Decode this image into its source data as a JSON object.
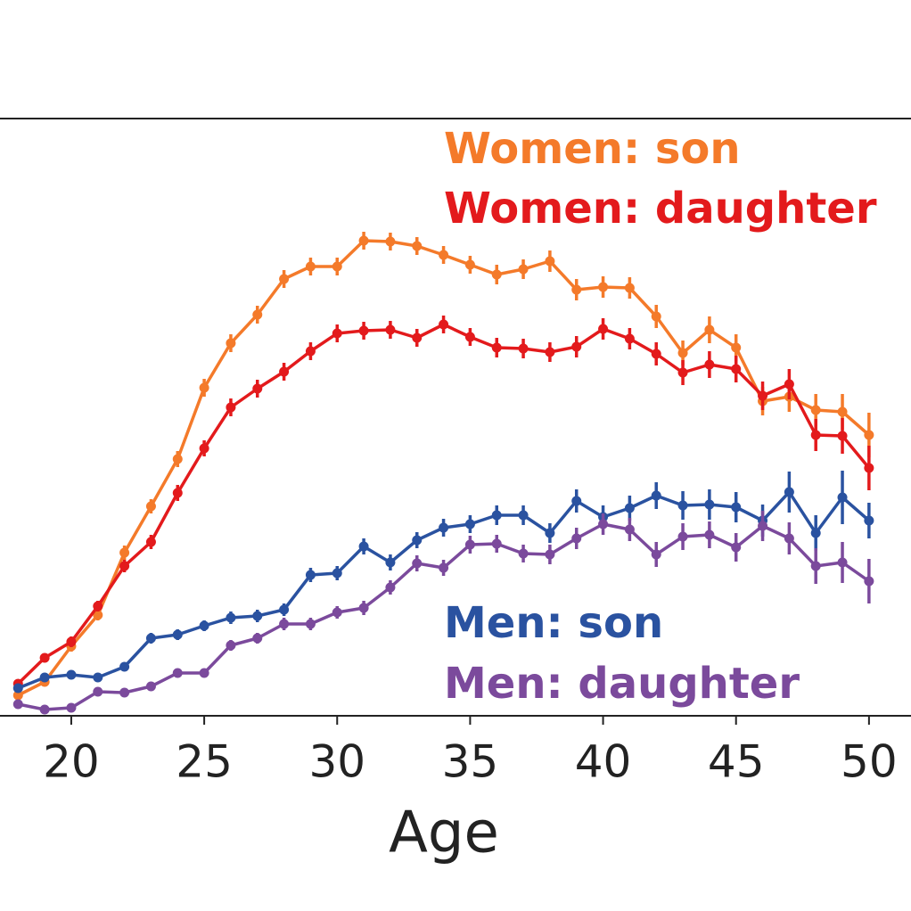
{
  "chart_data": {
    "type": "line",
    "x_label": "Age",
    "x": [
      18,
      19,
      20,
      21,
      22,
      23,
      24,
      25,
      26,
      27,
      28,
      29,
      30,
      31,
      32,
      33,
      34,
      35,
      36,
      37,
      38,
      39,
      40,
      41,
      42,
      43,
      44,
      45,
      46,
      47,
      48,
      49,
      50
    ],
    "xlim": [
      17.32,
      51.58
    ],
    "xticks": [
      20,
      25,
      30,
      35,
      40,
      45,
      50
    ],
    "ylim": [
      0,
      67
    ],
    "series": [
      {
        "name": "Women: son",
        "color": "#f47a2a",
        "values": [
          2.3,
          3.8,
          7.8,
          11.3,
          18.3,
          23.5,
          28.8,
          36.8,
          41.8,
          45,
          49,
          50.4,
          50.4,
          53.3,
          53.2,
          52.7,
          51.7,
          50.6,
          49.5,
          50.1,
          51,
          47.8,
          48.1,
          48,
          44.8,
          40.7,
          43.3,
          41.3,
          35.3,
          35.8,
          34.3,
          34.1,
          31.5
        ],
        "errors": [
          0.5,
          0.5,
          0.6,
          0.6,
          0.8,
          0.8,
          0.9,
          1,
          1,
          1,
          1,
          1,
          1,
          1,
          1,
          1,
          1,
          1,
          1.1,
          1.1,
          1.2,
          1.2,
          1.2,
          1.2,
          1.3,
          1.4,
          1.5,
          1.5,
          1.6,
          1.7,
          1.8,
          2,
          2.5
        ]
      },
      {
        "name": "Women: daughter",
        "color": "#e31a1c",
        "values": [
          3.6,
          6.5,
          8.3,
          12.3,
          16.8,
          19.5,
          25,
          30,
          34.6,
          36.7,
          38.6,
          40.9,
          42.9,
          43.2,
          43.3,
          42.4,
          43.9,
          42.5,
          41.3,
          41.2,
          40.8,
          41.4,
          43.4,
          42.3,
          40.6,
          38.5,
          39.4,
          38.9,
          35.9,
          37.2,
          31.5,
          31.4,
          27.8
        ],
        "errors": [
          0.5,
          0.5,
          0.6,
          0.6,
          0.7,
          0.8,
          0.9,
          0.9,
          1,
          1,
          1,
          1,
          1,
          1,
          1,
          1,
          1,
          1,
          1.1,
          1.1,
          1.1,
          1.2,
          1.2,
          1.2,
          1.3,
          1.4,
          1.5,
          1.5,
          1.6,
          1.7,
          1.8,
          2,
          2.5
        ]
      },
      {
        "name": "Men: son",
        "color": "#2a52a0",
        "values": [
          3.1,
          4.3,
          4.6,
          4.3,
          5.5,
          8.7,
          9.1,
          10.1,
          11,
          11.2,
          11.9,
          15.8,
          16,
          19,
          17.2,
          19.7,
          21.1,
          21.5,
          22.5,
          22.5,
          20.5,
          24.1,
          22.3,
          23.3,
          24.7,
          23.6,
          23.7,
          23.4,
          21.9,
          25.1,
          20.5,
          24.5,
          21.9
        ],
        "errors": [
          0.4,
          0.4,
          0.4,
          0.4,
          0.5,
          0.6,
          0.6,
          0.6,
          0.7,
          0.7,
          0.7,
          0.8,
          0.8,
          0.9,
          0.9,
          0.9,
          1,
          1,
          1.1,
          1.1,
          1.1,
          1.3,
          1.3,
          1.4,
          1.5,
          1.6,
          1.7,
          1.7,
          1.8,
          2.3,
          2,
          3,
          2
        ]
      },
      {
        "name": "Men: daughter",
        "color": "#7b4a9c",
        "values": [
          1.3,
          0.7,
          0.9,
          2.7,
          2.6,
          3.3,
          4.8,
          4.8,
          7.9,
          8.7,
          10.3,
          10.3,
          11.6,
          12.1,
          14.4,
          17.1,
          16.6,
          19.2,
          19.3,
          18.2,
          18.1,
          19.9,
          21.5,
          20.9,
          18.1,
          20.1,
          20.3,
          18.9,
          21.3,
          19.9,
          16.8,
          17.2,
          15.1
        ],
        "errors": [
          0.4,
          0.4,
          0.4,
          0.4,
          0.5,
          0.5,
          0.5,
          0.5,
          0.6,
          0.6,
          0.7,
          0.7,
          0.7,
          0.8,
          0.8,
          0.9,
          0.9,
          1,
          1,
          1,
          1.1,
          1.2,
          1.2,
          1.3,
          1.4,
          1.5,
          1.5,
          1.6,
          1.7,
          1.8,
          2,
          2.3,
          2.5
        ]
      }
    ]
  }
}
